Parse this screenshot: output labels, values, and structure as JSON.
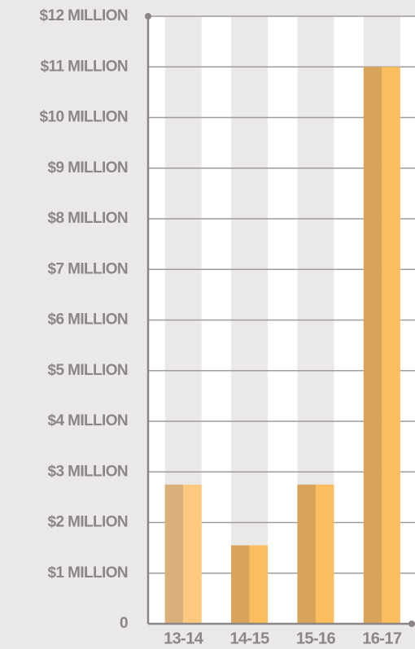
{
  "chart_data": {
    "type": "bar",
    "categories": [
      "13-14",
      "14-15",
      "15-16",
      "16-17"
    ],
    "values": [
      2750000,
      1550000,
      2750000,
      11000000
    ],
    "colors": [
      "#dbb07a",
      "#d8a45a",
      "#d8a45a",
      "#d8a45a"
    ],
    "highlight_colors": [
      "#fec97f",
      "#fbbd5e",
      "#fbbd5e",
      "#fbbd5e"
    ],
    "ylim": [
      0,
      12000000
    ],
    "yticks": [
      0,
      {
        "value": 1000000,
        "label": "$1 MILLION"
      },
      {
        "value": 2000000,
        "label": "$2 MILLION"
      },
      {
        "value": 3000000,
        "label": "$3 MILLION"
      },
      {
        "value": 4000000,
        "label": "$4 MILLION"
      },
      {
        "value": 5000000,
        "label": "$5 MILLION"
      },
      {
        "value": 6000000,
        "label": "$6 MILLION"
      },
      {
        "value": 7000000,
        "label": "$7 MILLION"
      },
      {
        "value": 8000000,
        "label": "$8 MILLION"
      },
      {
        "value": 9000000,
        "label": "$9 MILLION"
      },
      {
        "value": 10000000,
        "label": "$10 MILLION"
      },
      {
        "value": 11000000,
        "label": "$11 MILLION"
      },
      {
        "value": 12000000,
        "label": "$12 MILLION"
      }
    ],
    "grid": true
  }
}
